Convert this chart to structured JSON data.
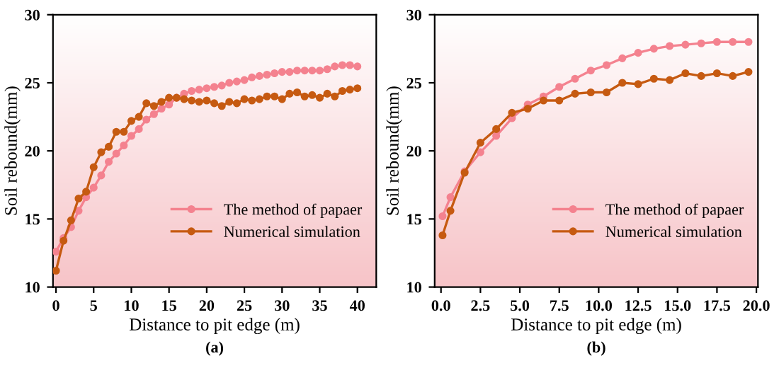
{
  "chart_data": [
    {
      "type": "line",
      "xlabel": "Distance to pit edge (m)",
      "ylabel": "Soil rebound(mm)",
      "annotations": [
        "(a)"
      ],
      "xlim": [
        -0.4,
        42.5
      ],
      "xticks": [
        0,
        5,
        10,
        15,
        20,
        25,
        30,
        35,
        40
      ],
      "ylim": [
        10,
        30
      ],
      "yticks": [
        10,
        15,
        20,
        25,
        30
      ],
      "legend": "lower right",
      "marker": "circle",
      "line_style": "solid",
      "grid": false,
      "x": [
        0,
        1,
        2,
        3,
        4,
        5,
        6,
        7,
        8,
        9,
        10,
        11,
        12,
        13,
        14,
        15,
        16,
        17,
        18,
        19,
        20,
        21,
        22,
        23,
        24,
        25,
        26,
        27,
        28,
        29,
        30,
        31,
        32,
        33,
        34,
        35,
        36,
        37,
        38,
        39,
        40
      ],
      "series": [
        {
          "name": "The method of papaer",
          "color": "#f4828f",
          "values": [
            12.6,
            13.6,
            14.4,
            15.6,
            16.6,
            17.3,
            18.2,
            19.2,
            19.8,
            20.4,
            21.1,
            21.6,
            22.3,
            22.7,
            23.1,
            23.4,
            23.9,
            24.2,
            24.4,
            24.5,
            24.6,
            24.7,
            24.8,
            25.0,
            25.1,
            25.2,
            25.4,
            25.5,
            25.6,
            25.7,
            25.8,
            25.8,
            25.9,
            25.9,
            25.9,
            25.9,
            26.0,
            26.2,
            26.3,
            26.3,
            26.2
          ]
        },
        {
          "name": "Numerical simulation",
          "color": "#c65a11",
          "values": [
            11.2,
            13.4,
            14.9,
            16.5,
            17.0,
            18.8,
            19.9,
            20.3,
            21.4,
            21.4,
            22.2,
            22.5,
            23.5,
            23.3,
            23.6,
            23.9,
            23.9,
            23.8,
            23.7,
            23.6,
            23.7,
            23.5,
            23.3,
            23.6,
            23.5,
            23.8,
            23.7,
            23.8,
            24.0,
            24.0,
            23.8,
            24.2,
            24.3,
            24.0,
            24.1,
            23.9,
            24.2,
            24.0,
            24.4,
            24.5,
            24.6
          ]
        }
      ]
    },
    {
      "type": "line",
      "xlabel": "Distance to pit edge (m)",
      "ylabel": "Soil rebound(mm)",
      "annotations": [
        "(b)"
      ],
      "xlim": [
        -0.4,
        20.1
      ],
      "xticks": [
        {
          "value": 0,
          "label": "0.0"
        },
        2.5,
        {
          "value": 5,
          "label": "5.0"
        },
        7.5,
        {
          "value": 10,
          "label": "10.0"
        },
        12.5,
        {
          "value": 15,
          "label": "15.0"
        },
        17.5,
        {
          "value": 20,
          "label": "20.0"
        }
      ],
      "ylim": [
        10,
        30
      ],
      "yticks": [
        10,
        15,
        20,
        25,
        30
      ],
      "legend": "lower right",
      "marker": "circle",
      "line_style": "solid",
      "grid": false,
      "x": [
        0.1,
        0.6,
        1.5,
        2.5,
        3.5,
        4.5,
        5.5,
        6.5,
        7.5,
        8.5,
        9.5,
        10.5,
        11.5,
        12.5,
        13.5,
        14.5,
        15.5,
        16.5,
        17.5,
        18.5,
        19.5
      ],
      "series": [
        {
          "name": "The method of papaer",
          "color": "#f4828f",
          "values": [
            15.2,
            16.6,
            18.5,
            19.9,
            21.1,
            22.4,
            23.4,
            24.0,
            24.7,
            25.3,
            25.9,
            26.3,
            26.8,
            27.2,
            27.5,
            27.7,
            27.8,
            27.9,
            28.0,
            28.0,
            28.0
          ]
        },
        {
          "name": "Numerical simulation",
          "color": "#c65a11",
          "values": [
            13.8,
            15.6,
            18.4,
            20.6,
            21.6,
            22.8,
            23.1,
            23.7,
            23.7,
            24.2,
            24.3,
            24.3,
            25.0,
            24.9,
            25.3,
            25.2,
            25.7,
            25.5,
            25.7,
            25.5,
            25.8
          ]
        }
      ]
    }
  ]
}
